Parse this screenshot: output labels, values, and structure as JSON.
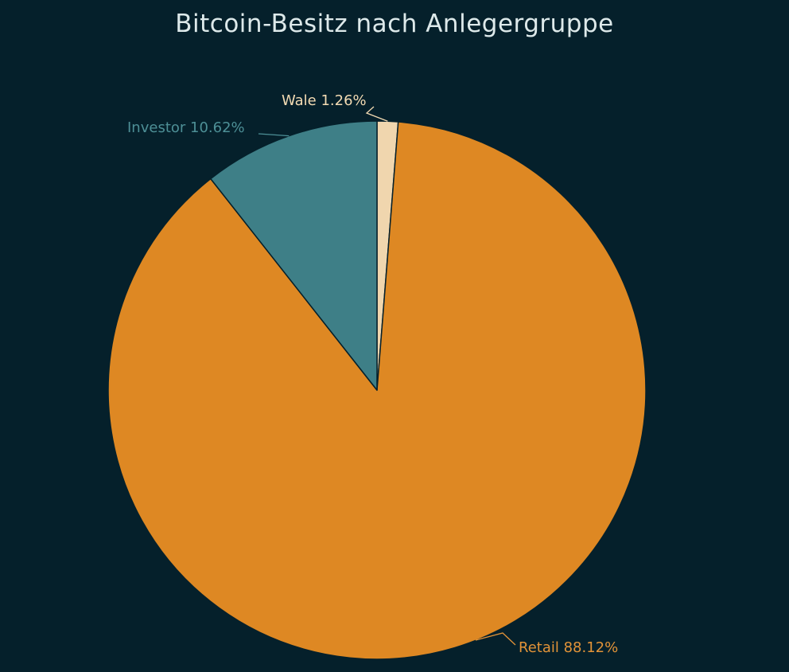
{
  "chart_data": {
    "type": "pie",
    "title": "Bitcoin-Besitz nach Anlegergruppe",
    "slices": [
      {
        "name": "Wale",
        "value": 1.26,
        "label": "Wale 1.26%",
        "color": "#f0d6ae",
        "label_color": "#f3dbb3"
      },
      {
        "name": "Retail",
        "value": 88.12,
        "label": "Retail 88.12%",
        "color": "#de8823",
        "label_color": "#e29338"
      },
      {
        "name": "Investor",
        "value": 10.62,
        "label": "Investor 10.62%",
        "color": "#3e7f87",
        "label_color": "#4d8f96"
      }
    ],
    "start_angle_deg": 0,
    "direction": "clockwise",
    "legend": "none",
    "background_color": "#05202b",
    "slice_border_color": "#05202b"
  }
}
